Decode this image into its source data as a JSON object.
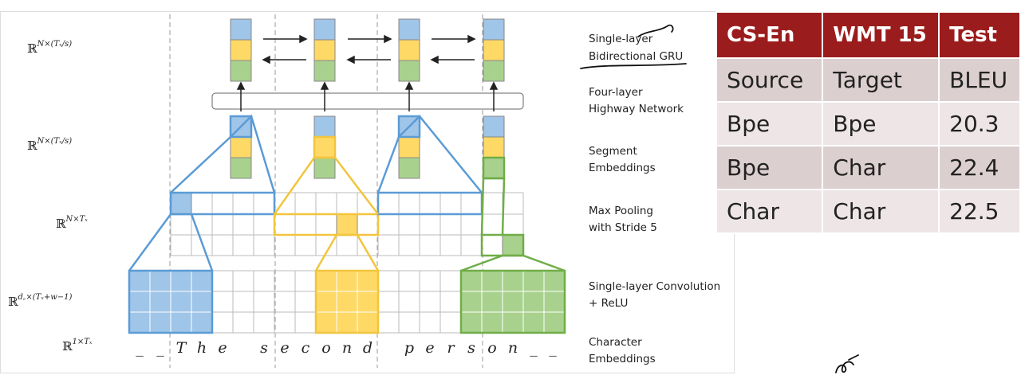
{
  "diagram": {
    "row_labels": [
      {
        "base": "ℝ",
        "sup": "N×(Tₓ/s)"
      },
      {
        "base": "ℝ",
        "sup": "N×(Tₓ/s)"
      },
      {
        "base": "ℝ",
        "sup": "N×Tₓ"
      },
      {
        "base": "ℝ",
        "sup": "d꜀×(Tₓ+w−1)"
      },
      {
        "base": "ℝ",
        "sup": "1×Tₓ"
      }
    ],
    "layer_labels": [
      [
        "Single-layer",
        "Bidirectional GRU"
      ],
      [
        "Four-layer",
        "Highway Network"
      ],
      [
        "Segment",
        "Embeddings"
      ],
      [
        "Max Pooling",
        "with Stride 5"
      ],
      [
        "Single-layer Convolution",
        "+ ReLU"
      ],
      [
        "Character",
        "Embeddings"
      ]
    ],
    "characters": [
      "_",
      "_",
      "T",
      "h",
      "e",
      "s",
      "e",
      "c",
      "o",
      "n",
      "d",
      "p",
      "e",
      "r",
      "s",
      "o",
      "n",
      "_",
      "_"
    ],
    "colors": {
      "blue": "#9fc5e8",
      "blue_line": "#5b9bd5",
      "yellow": "#ffd966",
      "yellow_line": "#f2c53d",
      "green": "#a9d18e",
      "green_line": "#70ad47",
      "header_red": "#9b1c1c"
    }
  },
  "table": {
    "headers": [
      "CS-En",
      "WMT 15",
      "Test"
    ],
    "rows": [
      [
        "Source",
        "Target",
        "BLEU"
      ],
      [
        "Bpe",
        "Bpe",
        "20.3"
      ],
      [
        "Bpe",
        "Char",
        "22.4"
      ],
      [
        "Char",
        "Char",
        "22.5"
      ]
    ]
  }
}
